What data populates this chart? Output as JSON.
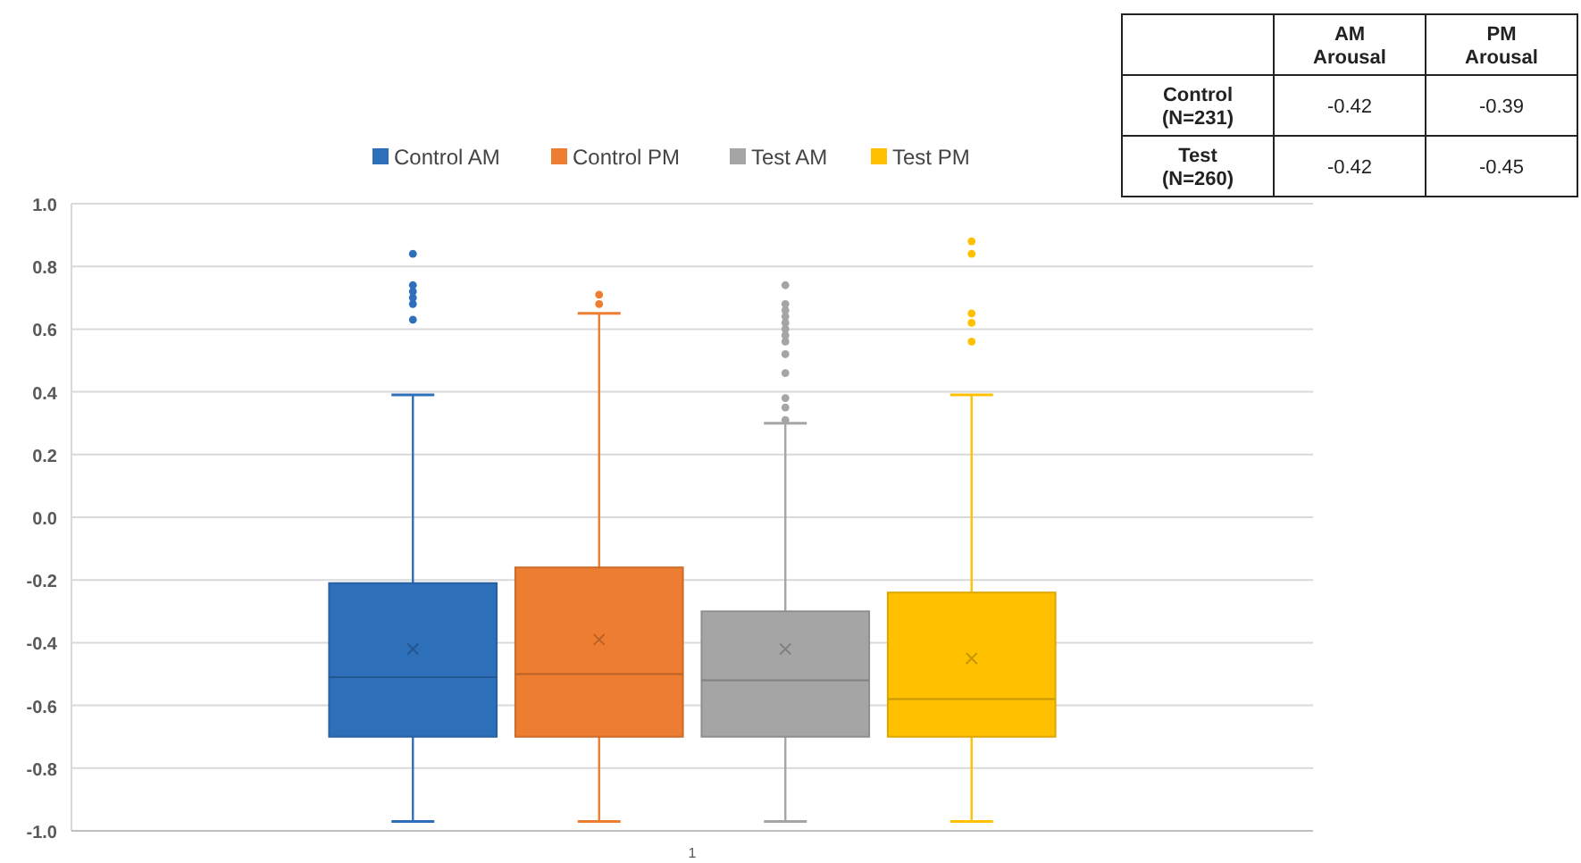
{
  "chart_data": {
    "type": "box",
    "categories": [
      "1"
    ],
    "ylim": [
      -1,
      1
    ],
    "yticks": [
      {
        "value": -1,
        "label": "-1.0"
      },
      {
        "value": -0.8,
        "label": "-0.8"
      },
      {
        "value": -0.6,
        "label": "-0.6"
      },
      {
        "value": -0.4,
        "label": "-0.4"
      },
      {
        "value": -0.2,
        "label": "-0.2"
      },
      {
        "value": 0,
        "label": "0.0"
      },
      {
        "value": 0.2,
        "label": "0.2"
      },
      {
        "value": 0.4,
        "label": "0.4"
      },
      {
        "value": 0.6,
        "label": "0.6"
      },
      {
        "value": 0.8,
        "label": "0.8"
      },
      {
        "value": 1,
        "label": "1.0"
      }
    ],
    "grid": "y",
    "legend": "top",
    "series": [
      {
        "name": "Control AM",
        "color": "#2e6fba",
        "boxes": [
          {
            "low": -0.97,
            "q1": -0.7,
            "median": -0.51,
            "q3": -0.21,
            "high": 0.39,
            "mean": -0.42,
            "outliers": [
              0.84,
              0.74,
              0.72,
              0.7,
              0.68,
              0.63
            ]
          }
        ]
      },
      {
        "name": "Control PM",
        "color": "#ed7d31",
        "boxes": [
          {
            "low": -0.97,
            "q1": -0.7,
            "median": -0.5,
            "q3": -0.16,
            "high": 0.65,
            "mean": -0.39,
            "outliers": [
              0.71,
              0.68
            ]
          }
        ]
      },
      {
        "name": "Test AM",
        "color": "#a5a5a5",
        "boxes": [
          {
            "low": -0.97,
            "q1": -0.7,
            "median": -0.52,
            "q3": -0.3,
            "high": 0.3,
            "mean": -0.42,
            "outliers": [
              0.74,
              0.68,
              0.66,
              0.64,
              0.62,
              0.6,
              0.58,
              0.56,
              0.52,
              0.46,
              0.38,
              0.35,
              0.31
            ]
          }
        ]
      },
      {
        "name": "Test PM",
        "color": "#ffc000",
        "boxes": [
          {
            "low": -0.97,
            "q1": -0.7,
            "median": -0.58,
            "q3": -0.24,
            "high": 0.39,
            "mean": -0.45,
            "outliers": [
              0.88,
              0.84,
              0.65,
              0.62,
              0.56
            ]
          }
        ]
      }
    ],
    "annotations": [
      "AM Arousal",
      "PM Arousal",
      "Control (N=231)",
      "Test (N=260)",
      "-0.42",
      "-0.39",
      "-0.42",
      "-0.45"
    ]
  }
}
